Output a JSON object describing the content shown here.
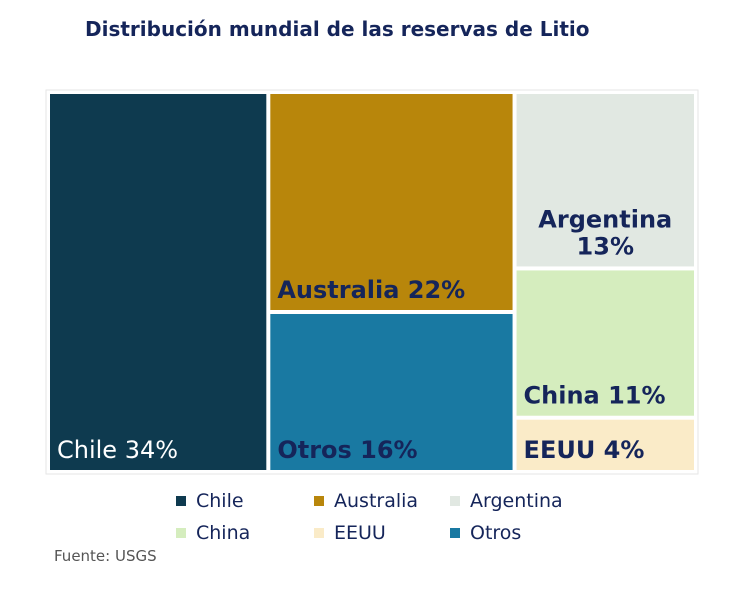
{
  "title": "Distribución mundial de las reservas de Litio",
  "source": {
    "label": "Fuente:",
    "value": "USGS"
  },
  "colors": {
    "Chile": "#0e3a4f",
    "Australia": "#b8860b",
    "Argentina": "#e1e8e2",
    "China": "#d5edbe",
    "EEUU": "#faebc8",
    "Otros": "#1979a2",
    "dark_text": "#15255a",
    "light_text": "#ffffff"
  },
  "chart_data": {
    "type": "treemap",
    "title": "Distribución mundial de las reservas de Litio",
    "unit": "%",
    "items": [
      {
        "name": "Chile",
        "value": 34,
        "label": "Chile 34%"
      },
      {
        "name": "Australia",
        "value": 22,
        "label": "Australia 22%"
      },
      {
        "name": "Otros",
        "value": 16,
        "label": "Otros 16%"
      },
      {
        "name": "Argentina",
        "value": 13,
        "label": "Argentina\n13%"
      },
      {
        "name": "China",
        "value": 11,
        "label": "China 11%"
      },
      {
        "name": "EEUU",
        "value": 4,
        "label": "EEUU 4%"
      }
    ],
    "legend": [
      "Chile",
      "Australia",
      "Argentina",
      "China",
      "EEUU",
      "Otros"
    ],
    "legend_position": "bottom"
  }
}
